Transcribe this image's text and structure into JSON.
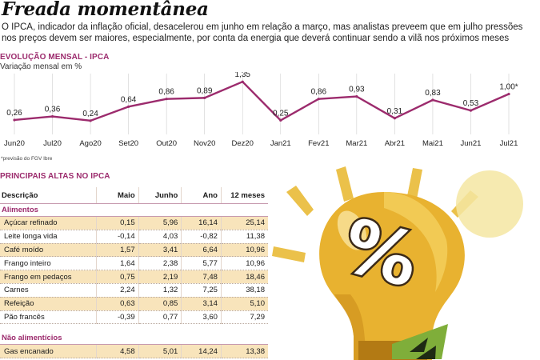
{
  "title": "Freada momentânea",
  "subtitle": "O IPCA, indicador da inflação oficial, desacelerou em junho em relação a março, mas analistas preveem que em julho pressões nos preços devem ser maiores, especialmente, por conta da energia que deverá continuar sendo a vilã nos próximos meses",
  "chart_section_title": "EVOLUÇÃO MENSAL - IPCA",
  "chart_subtitle": "Variação mensal em %",
  "footnote": "*previsão do FGV Ibre",
  "colors": {
    "accent": "#9c2b6d",
    "row_stripe": "#f8e4bb",
    "bulb": "#e8b230",
    "bulb_shade": "#c98a1a"
  },
  "chart_data": {
    "type": "line",
    "title": "EVOLUÇÃO MENSAL - IPCA",
    "ylabel": "Variação mensal em %",
    "categories": [
      "Jun20",
      "Jul20",
      "Ago20",
      "Set20",
      "Out20",
      "Nov20",
      "Dez20",
      "Jan21",
      "Fev21",
      "Mar21",
      "Abr21",
      "Mai21",
      "Jun21",
      "Jul21"
    ],
    "values": [
      0.26,
      0.36,
      0.24,
      0.64,
      0.86,
      0.89,
      1.35,
      0.25,
      0.86,
      0.93,
      0.31,
      0.83,
      0.53,
      1.0
    ],
    "value_labels": [
      "0,26",
      "0,36",
      "0,24",
      "0,64",
      "0,86",
      "0,89",
      "1,35",
      "0,25",
      "0,86",
      "0,93",
      "0,31",
      "0,83",
      "0,53",
      "1,00*"
    ],
    "ylim": [
      0.1,
      1.4
    ],
    "grid": true,
    "line_color": "#9c2b6d"
  },
  "table": {
    "section_title": "PRINCIPAIS ALTAS NO IPCA",
    "headers": [
      "Descrição",
      "Maio",
      "Junho",
      "Ano",
      "12 meses"
    ],
    "groups": [
      {
        "name": "Alimentos",
        "rows": [
          [
            "Açúcar refinado",
            "0,15",
            "5,96",
            "16,14",
            "25,14"
          ],
          [
            "Leite longa vida",
            "-0,14",
            "4,03",
            "-0,82",
            "11,38"
          ],
          [
            "Café moído",
            "1,57",
            "3,41",
            "6,64",
            "10,96"
          ],
          [
            "Frango inteiro",
            "1,64",
            "2,38",
            "5,77",
            "10,96"
          ],
          [
            "Frango em pedaços",
            "0,75",
            "2,19",
            "7,48",
            "18,46"
          ],
          [
            "Carnes",
            "2,24",
            "1,32",
            "7,25",
            "38,18"
          ],
          [
            "Refeição",
            "0,63",
            "0,85",
            "3,14",
            "5,10"
          ],
          [
            "Pão francês",
            "-0,39",
            "0,77",
            "3,60",
            "7,29"
          ]
        ]
      },
      {
        "name": "Não alimentícios",
        "rows": [
          [
            "Gas encanado",
            "4,58",
            "5,01",
            "14,24",
            "13,38"
          ]
        ]
      }
    ]
  },
  "illustration": {
    "symbol": "%",
    "icon": "light-bulb-icon"
  }
}
